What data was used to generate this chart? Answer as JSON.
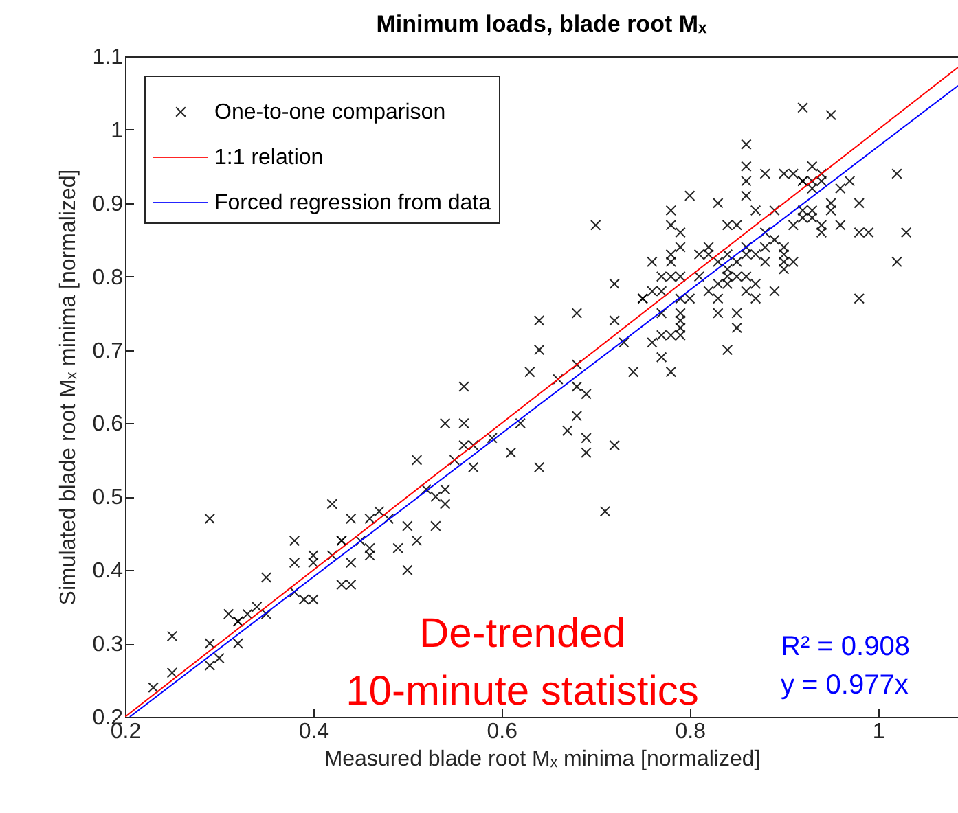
{
  "chart_data": {
    "type": "scatter",
    "title": "Minimum loads, blade root Mₓ",
    "xlabel": "Measured blade root Mₓ minima [normalized]",
    "ylabel": "Simulated blade root Mₓ minima [normalized]",
    "xlim": [
      0.2,
      1.085
    ],
    "ylim": [
      0.2,
      1.1
    ],
    "xticks": [
      0.2,
      0.4,
      0.6,
      0.8,
      1
    ],
    "yticks": [
      0.2,
      0.3,
      0.4,
      0.5,
      0.6,
      0.7,
      0.8,
      0.9,
      1,
      1.1
    ],
    "legend": "top left",
    "grid": false,
    "annotations": [
      "De-trended\n10-minute statistics",
      "R² = 0.908\ny = 0.977x"
    ],
    "series": [
      {
        "name": "One-to-one comparison",
        "marker": "cross",
        "color": "#000000",
        "x": [
          0.23,
          0.25,
          0.25,
          0.29,
          0.29,
          0.29,
          0.3,
          0.32,
          0.31,
          0.32,
          0.32,
          0.33,
          0.34,
          0.35,
          0.35,
          0.38,
          0.38,
          0.38,
          0.39,
          0.4,
          0.42,
          0.4,
          0.4,
          0.42,
          0.43,
          0.43,
          0.44,
          0.43,
          0.44,
          0.44,
          0.45,
          0.46,
          0.46,
          0.46,
          0.47,
          0.48,
          0.49,
          0.5,
          0.5,
          0.51,
          0.52,
          0.53,
          0.53,
          0.54,
          0.54,
          0.64,
          0.68,
          0.72,
          0.64,
          0.63,
          0.56,
          0.66,
          0.68,
          0.68,
          0.69,
          0.73,
          0.74,
          0.76,
          0.77,
          0.78,
          0.79,
          0.77,
          0.78,
          0.79,
          0.68,
          0.67,
          0.69,
          0.72,
          0.69,
          0.64,
          0.61,
          0.62,
          0.59,
          0.56,
          0.54,
          0.56,
          0.57,
          0.55,
          0.57,
          0.51,
          0.71,
          0.8,
          0.83,
          0.86,
          0.87,
          0.89,
          0.7,
          0.78,
          0.78,
          0.84,
          0.85,
          0.79,
          0.79,
          0.78,
          0.82,
          0.82,
          0.81,
          0.76,
          0.78,
          0.79,
          0.78,
          0.77,
          0.77,
          0.72,
          0.75,
          0.75,
          0.76,
          0.81,
          0.83,
          0.84,
          0.86,
          0.87,
          0.88,
          0.88,
          0.89,
          0.9,
          0.9,
          0.91,
          0.9,
          0.91,
          0.92,
          0.93,
          0.94,
          0.84,
          0.84,
          0.85,
          0.86,
          0.87,
          0.86,
          0.83,
          0.82,
          0.8,
          0.79,
          0.83,
          0.83,
          0.85,
          0.79,
          0.79,
          0.77,
          0.85,
          0.89,
          0.84,
          0.85,
          0.84,
          0.92,
          0.95,
          0.86,
          0.86,
          0.86,
          0.88,
          0.9,
          0.91,
          0.92,
          0.93,
          0.94,
          0.92,
          0.93,
          0.93,
          0.94,
          0.96,
          0.97,
          0.98,
          0.95,
          0.93,
          0.95,
          0.92,
          0.94,
          0.96,
          0.98,
          0.99,
          1.03,
          1.02,
          1.02,
          0.98,
          0.9,
          0.87,
          0.88,
          0.86
        ],
        "values": [
          0.24,
          0.26,
          0.31,
          0.47,
          0.3,
          0.27,
          0.28,
          0.3,
          0.34,
          0.33,
          0.33,
          0.34,
          0.35,
          0.39,
          0.34,
          0.44,
          0.41,
          0.37,
          0.36,
          0.36,
          0.49,
          0.41,
          0.42,
          0.42,
          0.44,
          0.44,
          0.41,
          0.38,
          0.38,
          0.47,
          0.44,
          0.43,
          0.42,
          0.47,
          0.48,
          0.47,
          0.43,
          0.46,
          0.4,
          0.44,
          0.51,
          0.46,
          0.5,
          0.51,
          0.49,
          0.74,
          0.75,
          0.74,
          0.7,
          0.67,
          0.65,
          0.66,
          0.68,
          0.65,
          0.64,
          0.71,
          0.67,
          0.71,
          0.72,
          0.72,
          0.72,
          0.69,
          0.67,
          0.73,
          0.61,
          0.59,
          0.58,
          0.57,
          0.56,
          0.54,
          0.56,
          0.6,
          0.58,
          0.6,
          0.6,
          0.57,
          0.57,
          0.55,
          0.54,
          0.55,
          0.48,
          0.91,
          0.9,
          0.91,
          0.89,
          0.89,
          0.87,
          0.89,
          0.87,
          0.87,
          0.87,
          0.86,
          0.84,
          0.83,
          0.84,
          0.83,
          0.83,
          0.82,
          0.82,
          0.8,
          0.8,
          0.8,
          0.78,
          0.79,
          0.77,
          0.77,
          0.78,
          0.8,
          0.82,
          0.83,
          0.84,
          0.83,
          0.82,
          0.84,
          0.85,
          0.84,
          0.83,
          0.82,
          0.82,
          0.87,
          0.89,
          0.88,
          0.86,
          0.8,
          0.79,
          0.8,
          0.8,
          0.79,
          0.78,
          0.79,
          0.78,
          0.77,
          0.77,
          0.77,
          0.75,
          0.75,
          0.75,
          0.74,
          0.75,
          0.73,
          0.78,
          0.81,
          0.82,
          0.7,
          1.03,
          1.02,
          0.98,
          0.95,
          0.93,
          0.94,
          0.94,
          0.94,
          0.93,
          0.95,
          0.94,
          0.93,
          0.92,
          0.93,
          0.93,
          0.92,
          0.93,
          0.9,
          0.9,
          0.89,
          0.89,
          0.88,
          0.87,
          0.87,
          0.86,
          0.86,
          0.86,
          0.94,
          0.82,
          0.77,
          0.81,
          0.77,
          0.86,
          0.83
        ]
      },
      {
        "name": "1:1 relation",
        "type": "line",
        "marker": "none",
        "color": "#ff0000",
        "x": [
          0.2,
          1.085
        ],
        "values": [
          0.2,
          1.085
        ]
      },
      {
        "name": "Forced regression from data",
        "type": "line",
        "marker": "none",
        "color": "#0000ff",
        "x": [
          0.205,
          1.085
        ],
        "values": [
          0.2,
          1.06
        ]
      }
    ]
  }
}
